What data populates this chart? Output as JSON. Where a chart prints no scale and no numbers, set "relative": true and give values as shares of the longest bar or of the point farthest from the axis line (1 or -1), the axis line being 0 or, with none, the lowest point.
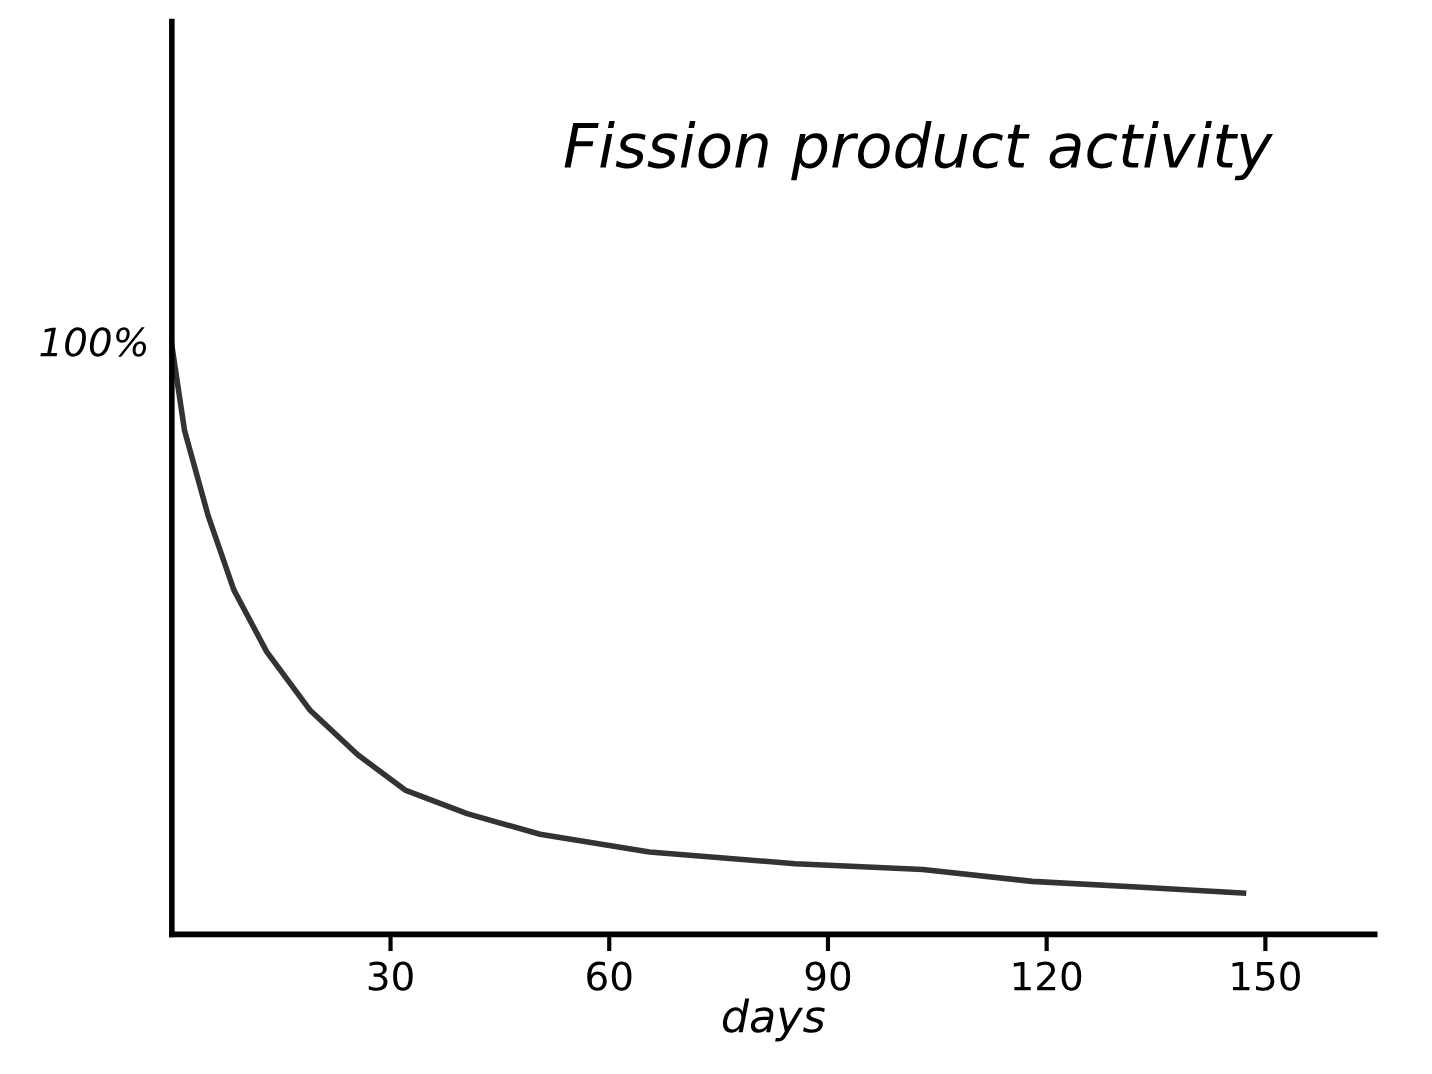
{
  "chart_data": {
    "type": "line",
    "title": "Fission product activity",
    "xlabel": "days",
    "relative": true,
    "x": [
      0,
      1.75,
      5,
      8.5,
      13,
      19,
      25.5,
      32,
      40.5,
      50.5,
      65.5,
      85.5,
      103,
      118,
      133,
      147
    ],
    "values": [
      1,
      0.855,
      0.71,
      0.585,
      0.48,
      0.38,
      0.305,
      0.245,
      0.205,
      0.17,
      0.14,
      0.12,
      0.11,
      0.09,
      0.08,
      0.07
    ],
    "color": "#333333",
    "xlim": [
      0,
      165
    ],
    "xticks": [
      30,
      60,
      90,
      120,
      150
    ],
    "annotations": [
      {
        "text": "100%",
        "x": 0,
        "y": 1
      }
    ],
    "grid": false,
    "legend": false,
    "marker": "none",
    "line_style": "solid"
  }
}
